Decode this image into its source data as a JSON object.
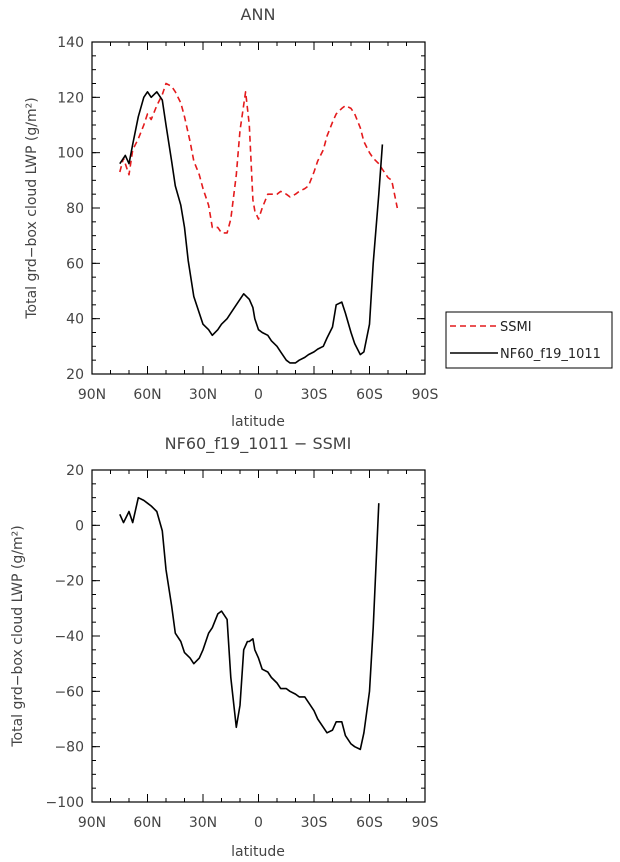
{
  "chart_data": [
    {
      "type": "line",
      "title": "ANN",
      "xlabel": "latitude",
      "ylabel": "Total grd−box cloud LWP (g/m²)",
      "xlim": [
        90,
        -90
      ],
      "ylim": [
        20,
        140
      ],
      "xticks": [
        90,
        60,
        30,
        0,
        -30,
        -60,
        -90
      ],
      "xtick_labels": [
        "90N",
        "60N",
        "30N",
        "0",
        "30S",
        "60S",
        "90S"
      ],
      "yticks": [
        20,
        40,
        60,
        80,
        100,
        120,
        140
      ],
      "ytick_labels": [
        "20",
        "40",
        "60",
        "80",
        "100",
        "120",
        "140"
      ],
      "legend_position": "right",
      "series": [
        {
          "name": "SSMI",
          "color": "#e41a1c",
          "dash": "dashed",
          "x": [
            75,
            73,
            70,
            68,
            65,
            62,
            60,
            58,
            55,
            52,
            50,
            47,
            45,
            42,
            40,
            37,
            35,
            32,
            30,
            27,
            25,
            22,
            20,
            17,
            15,
            12,
            10,
            7,
            5,
            3,
            2,
            0,
            -2,
            -5,
            -7,
            -10,
            -12,
            -15,
            -17,
            -20,
            -22,
            -25,
            -27,
            -30,
            -32,
            -35,
            -37,
            -40,
            -42,
            -45,
            -47,
            -50,
            -52,
            -55,
            -57,
            -60,
            -62,
            -65,
            -67,
            -70,
            -72,
            -75
          ],
          "y": [
            93,
            98,
            92,
            101,
            105,
            110,
            114,
            112,
            117,
            121,
            125,
            124,
            122,
            118,
            113,
            104,
            97,
            92,
            87,
            81,
            73,
            73,
            71,
            71,
            76,
            92,
            108,
            122,
            110,
            83,
            79,
            76,
            80,
            85,
            85,
            85,
            86,
            85,
            84,
            85,
            86,
            87,
            88,
            93,
            97,
            101,
            106,
            111,
            114,
            116,
            117,
            116,
            114,
            109,
            104,
            100,
            98,
            96,
            94,
            91,
            90,
            80
          ]
        },
        {
          "name": "NF60_f19_1011",
          "color": "#000000",
          "dash": "solid",
          "x": [
            75,
            73,
            72,
            70,
            68,
            65,
            62,
            60,
            58,
            55,
            52,
            50,
            47,
            45,
            42,
            40,
            38,
            35,
            32,
            30,
            27,
            25,
            22,
            20,
            17,
            15,
            12,
            10,
            8,
            5,
            3,
            2,
            0,
            -2,
            -5,
            -7,
            -10,
            -12,
            -15,
            -17,
            -20,
            -22,
            -25,
            -27,
            -30,
            -32,
            -35,
            -37,
            -40,
            -42,
            -45,
            -47,
            -50,
            -52,
            -55,
            -57,
            -60,
            -62,
            -65,
            -67
          ],
          "y": [
            96,
            98,
            99,
            96,
            103,
            113,
            120,
            122,
            120,
            122,
            119,
            110,
            97,
            88,
            81,
            73,
            61,
            48,
            42,
            38,
            36,
            34,
            36,
            38,
            40,
            42,
            45,
            47,
            49,
            47,
            44,
            40,
            36,
            35,
            34,
            32,
            30,
            28,
            25,
            24,
            24,
            25,
            26,
            27,
            28,
            29,
            30,
            33,
            37,
            45,
            46,
            42,
            35,
            31,
            27,
            28,
            38,
            60,
            85,
            103
          ]
        }
      ]
    },
    {
      "type": "line",
      "title": "NF60_f19_1011 − SSMI",
      "xlabel": "latitude",
      "ylabel": "Total grd−box cloud LWP (g/m²)",
      "xlim": [
        90,
        -90
      ],
      "ylim": [
        -100,
        20
      ],
      "xticks": [
        90,
        60,
        30,
        0,
        -30,
        -60,
        -90
      ],
      "xtick_labels": [
        "90N",
        "60N",
        "30N",
        "0",
        "30S",
        "60S",
        "90S"
      ],
      "yticks": [
        -100,
        -80,
        -60,
        -40,
        -20,
        0,
        20
      ],
      "ytick_labels": [
        "−100",
        "−80",
        "−60",
        "−40",
        "−20",
        "0",
        "20"
      ],
      "series": [
        {
          "color": "#000000",
          "dash": "solid",
          "x": [
            75,
            73,
            70,
            68,
            65,
            62,
            60,
            58,
            55,
            52,
            50,
            47,
            45,
            42,
            40,
            37,
            35,
            32,
            30,
            27,
            25,
            22,
            20,
            17,
            15,
            12,
            10,
            8,
            6,
            5,
            3,
            2,
            0,
            -2,
            -5,
            -7,
            -10,
            -12,
            -15,
            -17,
            -20,
            -22,
            -25,
            -27,
            -30,
            -32,
            -35,
            -37,
            -40,
            -42,
            -45,
            -47,
            -50,
            -52,
            -55,
            -57,
            -60,
            -62,
            -65
          ],
          "y": [
            4,
            1,
            5,
            1,
            10,
            9,
            8,
            7,
            5,
            -2,
            -16,
            -29,
            -39,
            -42,
            -46,
            -48,
            -50,
            -48,
            -45,
            -39,
            -37,
            -32,
            -31,
            -34,
            -55,
            -73,
            -65,
            -45,
            -42,
            -42,
            -41,
            -45,
            -48,
            -52,
            -53,
            -55,
            -57,
            -59,
            -59,
            -60,
            -61,
            -62,
            -62,
            -64,
            -67,
            -70,
            -73,
            -75,
            -74,
            -71,
            -71,
            -76,
            -79,
            -80,
            -81,
            -75,
            -60,
            -37,
            8
          ]
        }
      ]
    }
  ]
}
